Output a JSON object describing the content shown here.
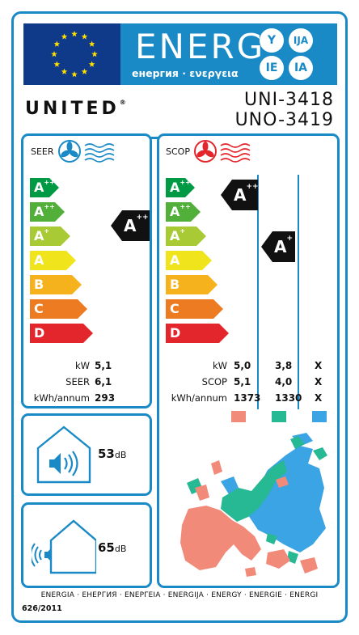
{
  "header": {
    "energy_word": "ENERG",
    "energy_sub": "енергия · ενεργεια",
    "lang_codes": [
      "Y",
      "IJA",
      "IE",
      "IA"
    ]
  },
  "brand": "UNITED",
  "brand_reg": "®",
  "models": [
    "UNI-3418",
    "UNO-3419"
  ],
  "cooling": {
    "title": "SEER",
    "classes": [
      {
        "letter": "A",
        "sup": "+++",
        "color": "#009a44"
      },
      {
        "letter": "A",
        "sup": "++",
        "color": "#52b03a"
      },
      {
        "letter": "A",
        "sup": "+",
        "color": "#a8cb35"
      },
      {
        "letter": "A",
        "sup": "",
        "color": "#f0e51c"
      },
      {
        "letter": "B",
        "sup": "",
        "color": "#f5b21c"
      },
      {
        "letter": "C",
        "sup": "",
        "color": "#ed7b22"
      },
      {
        "letter": "D",
        "sup": "",
        "color": "#e3262b"
      }
    ],
    "rating": {
      "letter": "A",
      "sup": "++"
    },
    "rows": [
      {
        "label": "kW",
        "value": "5,1"
      },
      {
        "label": "SEER",
        "value": "6,1"
      },
      {
        "label": "kWh/annum",
        "value": "293"
      }
    ]
  },
  "heating": {
    "title": "SCOP",
    "ratings": [
      {
        "letter": "A",
        "sup": "+++"
      },
      {
        "letter": "A",
        "sup": "+"
      }
    ],
    "rows": [
      {
        "label": "kW",
        "values": [
          "5,0",
          "3,8",
          "X"
        ]
      },
      {
        "label": "SCOP",
        "values": [
          "5,1",
          "4,0",
          "X"
        ]
      },
      {
        "label": "kWh/annum",
        "values": [
          "1373",
          "1330",
          "X"
        ]
      }
    ],
    "zone_colors": [
      "#f28a7a",
      "#27b894",
      "#3aa4e4"
    ]
  },
  "noise_indoor": {
    "value": "53",
    "unit": "dB"
  },
  "noise_outdoor": {
    "value": "65",
    "unit": "dB"
  },
  "footer": {
    "languages": "ENERGIA · ЕНЕРГИЯ · ΕΝΕΡΓΕΙΑ · ENERGIJA · ENERGY · ENERGIE · ENERGI",
    "regulation": "626/2011"
  },
  "colors": {
    "frame": "#1a8ac6",
    "eu_blue": "#0f3a8a",
    "star": "#ffde00"
  }
}
